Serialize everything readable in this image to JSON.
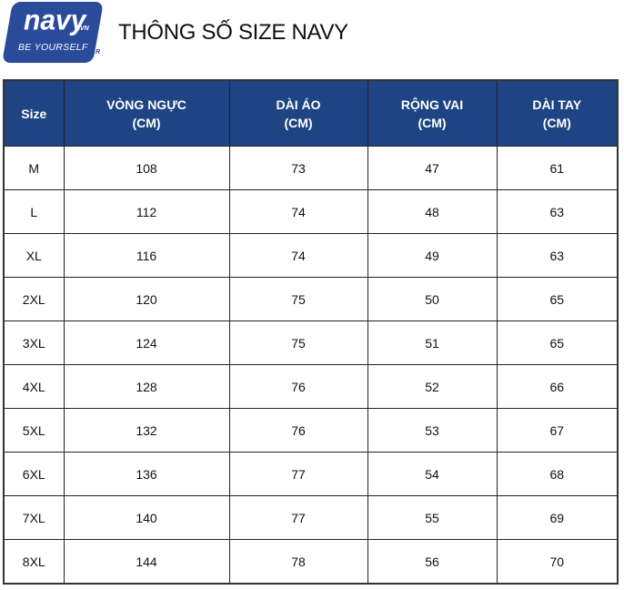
{
  "logo": {
    "brand": "navy",
    "domain_suffix": ".VN",
    "tagline": "BE YOURSELF",
    "registered_mark": "R",
    "color": "#2a4a9a"
  },
  "title": "THÔNG SỐ SIZE NAVY",
  "table": {
    "header_color": "#1e4483",
    "columns": [
      {
        "line1": "Size",
        "line2": ""
      },
      {
        "line1": "VÒNG NGỰC",
        "line2": "(CM)"
      },
      {
        "line1": "DÀI ÁO",
        "line2": "(CM)"
      },
      {
        "line1": "RỘNG VAI",
        "line2": "(CM)"
      },
      {
        "line1": "DÀI TAY",
        "line2": "(CM)"
      }
    ],
    "rows": [
      [
        "M",
        "108",
        "73",
        "47",
        "61"
      ],
      [
        "L",
        "112",
        "74",
        "48",
        "63"
      ],
      [
        "XL",
        "116",
        "74",
        "49",
        "63"
      ],
      [
        "2XL",
        "120",
        "75",
        "50",
        "65"
      ],
      [
        "3XL",
        "124",
        "75",
        "51",
        "65"
      ],
      [
        "4XL",
        "128",
        "76",
        "52",
        "66"
      ],
      [
        "5XL",
        "132",
        "76",
        "53",
        "67"
      ],
      [
        "6XL",
        "136",
        "77",
        "54",
        "68"
      ],
      [
        "7XL",
        "140",
        "77",
        "55",
        "69"
      ],
      [
        "8XL",
        "144",
        "78",
        "56",
        "70"
      ]
    ]
  }
}
